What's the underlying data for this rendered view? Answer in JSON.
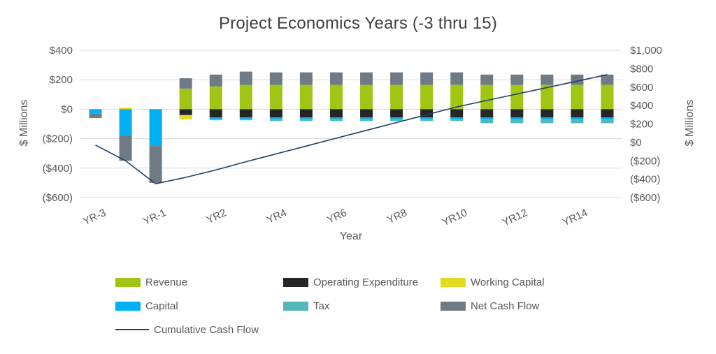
{
  "title": "Project Economics Years (-3 thru 15)",
  "colors": {
    "background": "#FFFFFF",
    "grid": "#D9D9D9",
    "axis_text": "#595959",
    "title_text": "#404040"
  },
  "chart_data": {
    "type": "bar",
    "stacked": true,
    "title": "Project Economics Years (-3 thru 15)",
    "xlabel": "Year",
    "ylabel_left": "$ Millions",
    "ylabel_right": "$ Millions",
    "grid": "horizontal",
    "legend_position": "bottom",
    "categories": [
      "YR-3",
      "YR-2",
      "YR-1",
      "YR1",
      "YR2",
      "YR3",
      "YR4",
      "YR5",
      "YR6",
      "YR7",
      "YR8",
      "YR9",
      "YR10",
      "YR11",
      "YR12",
      "YR13",
      "YR14",
      "YR15"
    ],
    "x_tick_labels_shown": [
      "YR-3",
      "YR-1",
      "YR2",
      "YR4",
      "YR6",
      "YR8",
      "YR10",
      "YR12",
      "YR14"
    ],
    "left_axis": {
      "min": -600,
      "max": 400,
      "values": [
        400,
        200,
        0,
        -200,
        -400,
        -600
      ],
      "ticks": [
        "$400",
        "$200",
        "$0",
        "($200)",
        "($400)",
        "($600)"
      ]
    },
    "right_axis": {
      "min": -600,
      "max": 1000,
      "values": [
        1000,
        800,
        600,
        400,
        200,
        0,
        -200,
        -400,
        -600
      ],
      "ticks": [
        "$1,000",
        "$800",
        "$600",
        "$400",
        "$200",
        "$0",
        "($200)",
        "($400)",
        "($600)"
      ]
    },
    "series": [
      {
        "name": "Revenue",
        "color": "#A0C515",
        "values": [
          0,
          0,
          0,
          140,
          155,
          165,
          165,
          165,
          165,
          165,
          165,
          165,
          165,
          165,
          165,
          165,
          165,
          165
        ]
      },
      {
        "name": "Operating Expenditure",
        "color": "#262626",
        "values": [
          0,
          0,
          0,
          -40,
          -55,
          -55,
          -55,
          -55,
          -55,
          -55,
          -55,
          -55,
          -55,
          -55,
          -55,
          -55,
          -55,
          -55
        ]
      },
      {
        "name": "Working Capital",
        "color": "#E3DB1F",
        "values": [
          0,
          10,
          0,
          -30,
          0,
          0,
          0,
          0,
          0,
          0,
          0,
          0,
          0,
          0,
          0,
          0,
          0,
          0
        ]
      },
      {
        "name": "Capital",
        "color": "#00B0F0",
        "values": [
          -30,
          -180,
          -250,
          0,
          -10,
          -10,
          -10,
          -10,
          -10,
          -10,
          -10,
          -10,
          -10,
          -15,
          -15,
          -15,
          -15,
          -15
        ]
      },
      {
        "name": "Tax",
        "color": "#54B8BA",
        "values": [
          0,
          0,
          0,
          0,
          -10,
          -10,
          -15,
          -15,
          -15,
          -15,
          -15,
          -15,
          -15,
          -25,
          -25,
          -25,
          -25,
          -25
        ]
      },
      {
        "name": "Net Cash Flow",
        "color": "#6E7B85",
        "values": [
          -30,
          -170,
          -250,
          70,
          80,
          90,
          85,
          85,
          85,
          85,
          85,
          85,
          85,
          70,
          70,
          70,
          70,
          70
        ]
      }
    ],
    "line_series": {
      "name": "Cumulative Cash Flow",
      "color": "#1F3F5F",
      "axis": "right",
      "values": [
        -30,
        -200,
        -450,
        -380,
        -300,
        -210,
        -125,
        -40,
        45,
        130,
        215,
        300,
        385,
        455,
        525,
        595,
        665,
        735
      ]
    }
  }
}
